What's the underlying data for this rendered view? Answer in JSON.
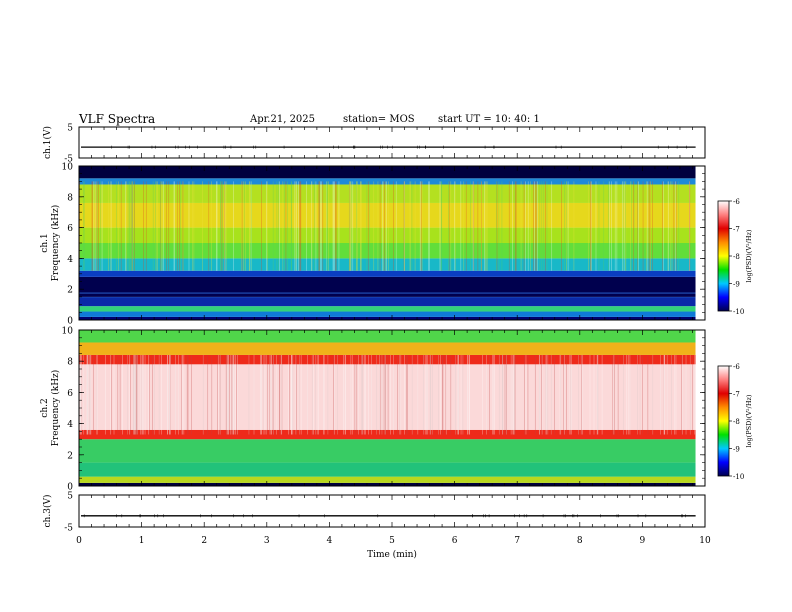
{
  "header": {
    "title": "VLF Spectra",
    "date": "Apr.21, 2025",
    "station": "station= MOS",
    "start": "start UT =  10: 40: 1"
  },
  "chart_data": [
    {
      "type": "line",
      "ylabel": "ch.1(V)",
      "ylim": [
        -5,
        5
      ],
      "ytick_labels": [
        "5",
        "-5"
      ],
      "series": [
        {
          "values_approx_constant": -1.5
        }
      ]
    },
    {
      "type": "heatmap",
      "ylabel": "ch.1\nFrequency (kHz)",
      "ylim": [
        0,
        10
      ],
      "ytick_labels": [
        "0",
        "2",
        "4",
        "6",
        "8",
        "10"
      ],
      "data_extent_min": [
        0,
        9.85
      ],
      "bands": [
        {
          "from_khz": 0.0,
          "to_khz": 0.2,
          "color": "#00006e"
        },
        {
          "from_khz": 0.2,
          "to_khz": 0.55,
          "color": "#0f7ad8"
        },
        {
          "from_khz": 0.55,
          "to_khz": 0.9,
          "color": "#32d37a"
        },
        {
          "from_khz": 0.9,
          "to_khz": 1.5,
          "color": "#0a2aa8"
        },
        {
          "from_khz": 1.5,
          "to_khz": 2.8,
          "color": "#00004e"
        },
        {
          "from_khz": 2.8,
          "to_khz": 3.2,
          "color": "#0a3ec2"
        },
        {
          "from_khz": 3.2,
          "to_khz": 4.0,
          "color": "#18b8c8"
        },
        {
          "from_khz": 4.0,
          "to_khz": 5.0,
          "color": "#62de3a"
        },
        {
          "from_khz": 5.0,
          "to_khz": 6.0,
          "color": "#a8e21c"
        },
        {
          "from_khz": 6.0,
          "to_khz": 7.6,
          "color": "#e6d81c"
        },
        {
          "from_khz": 7.6,
          "to_khz": 8.8,
          "color": "#b4e020"
        },
        {
          "from_khz": 8.8,
          "to_khz": 9.2,
          "color": "#1e8ad8"
        },
        {
          "from_khz": 9.2,
          "to_khz": 10.0,
          "color": "#00003e"
        }
      ]
    },
    {
      "type": "heatmap",
      "ylabel": "ch.2\nFrequency (kHz)",
      "ylim": [
        0,
        10
      ],
      "ytick_labels": [
        "0",
        "2",
        "4",
        "6",
        "8",
        "10"
      ],
      "data_extent_min": [
        0,
        9.85
      ],
      "bands": [
        {
          "from_khz": 0.0,
          "to_khz": 0.2,
          "color": "#00003a"
        },
        {
          "from_khz": 0.2,
          "to_khz": 0.6,
          "color": "#b8d81e"
        },
        {
          "from_khz": 0.6,
          "to_khz": 1.5,
          "color": "#22c27a"
        },
        {
          "from_khz": 1.5,
          "to_khz": 3.0,
          "color": "#38cc64"
        },
        {
          "from_khz": 3.0,
          "to_khz": 3.6,
          "color": "#ee2a1a"
        },
        {
          "from_khz": 3.6,
          "to_khz": 7.8,
          "color": "#fbd9d9"
        },
        {
          "from_khz": 7.8,
          "to_khz": 8.4,
          "color": "#ee2a1a"
        },
        {
          "from_khz": 8.4,
          "to_khz": 9.2,
          "color": "#f0b21a"
        },
        {
          "from_khz": 9.2,
          "to_khz": 10.0,
          "color": "#50d64a"
        }
      ]
    },
    {
      "type": "line",
      "ylabel": "ch.3(V)",
      "ylim": [
        -5,
        5
      ],
      "ytick_labels": [
        "5",
        "-5"
      ],
      "xlabel": "Time (min)",
      "xlim": [
        0,
        10
      ],
      "xtick_labels": [
        "0",
        "1",
        "2",
        "3",
        "4",
        "5",
        "6",
        "7",
        "8",
        "9",
        "10"
      ],
      "series": [
        {
          "values_approx_constant": -1.5
        }
      ]
    }
  ],
  "colorbar": {
    "label": "log(PSD)(V²/Hz)",
    "range": [
      -10,
      -6
    ],
    "tick_labels": [
      "-6",
      "-7",
      "-8",
      "-9",
      "-10"
    ],
    "stops": [
      "#ffffff",
      "#ff8080",
      "#e00000",
      "#ff8c00",
      "#ffff00",
      "#00e000",
      "#00c8ff",
      "#0000ff",
      "#000050"
    ]
  }
}
